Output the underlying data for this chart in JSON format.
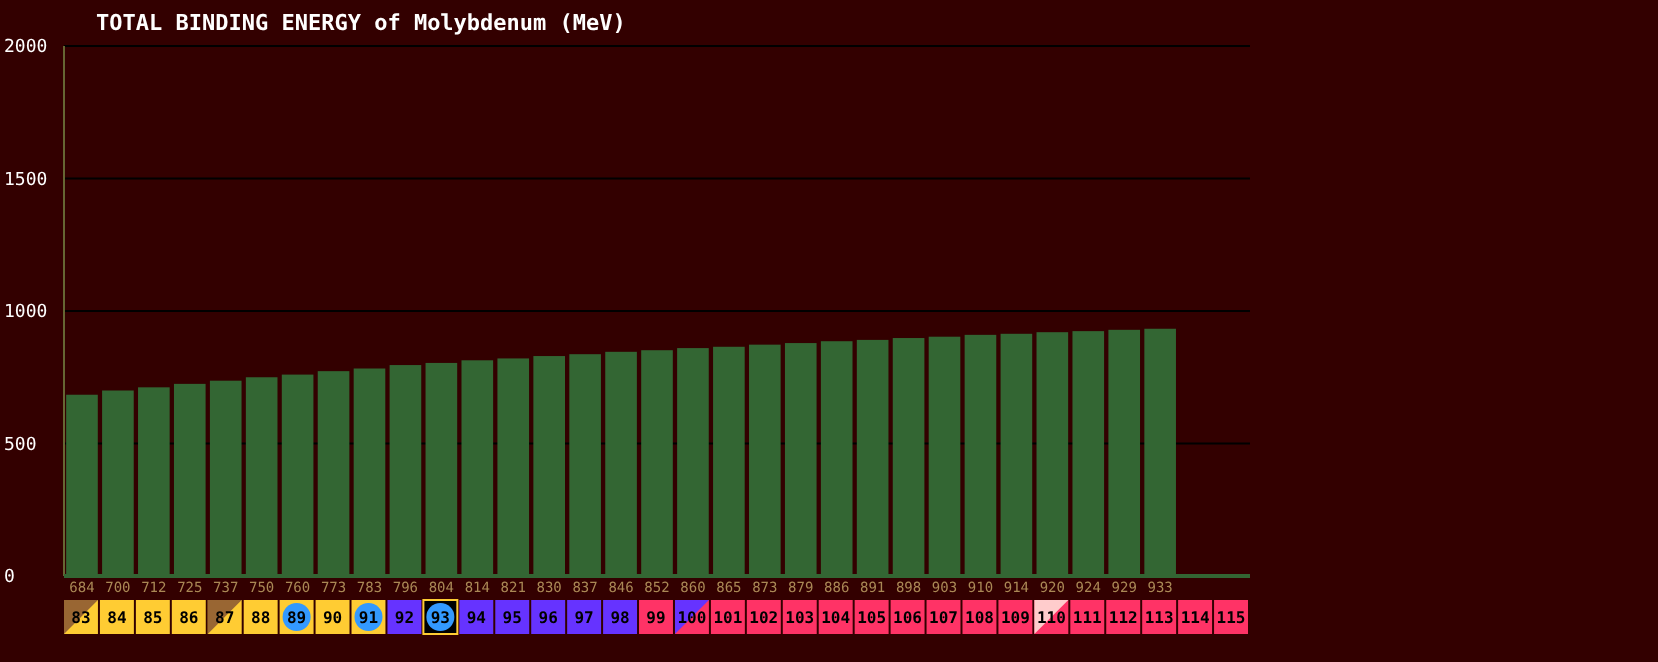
{
  "chart_data": {
    "type": "bar",
    "title": "TOTAL BINDING ENERGY of Molybdenum (MeV)",
    "categories": [
      "83",
      "84",
      "85",
      "86",
      "87",
      "88",
      "89",
      "90",
      "91",
      "92",
      "93",
      "94",
      "95",
      "96",
      "97",
      "98",
      "99",
      "100",
      "101",
      "102",
      "103",
      "104",
      "105",
      "106",
      "107",
      "108",
      "109",
      "110",
      "111",
      "112",
      "113",
      "114",
      "115"
    ],
    "values": [
      684,
      700,
      712,
      725,
      737,
      750,
      760,
      773,
      783,
      796,
      804,
      814,
      821,
      830,
      837,
      846,
      852,
      860,
      865,
      873,
      879,
      886,
      891,
      898,
      903,
      910,
      914,
      920,
      924,
      929,
      933,
      null,
      null
    ],
    "value_labels": [
      "684",
      "700",
      "712",
      "725",
      "737",
      "750",
      "760",
      "773",
      "783",
      "796",
      "804",
      "814",
      "821",
      "830",
      "837",
      "846",
      "852",
      "860",
      "865",
      "873",
      "879",
      "886",
      "891",
      "898",
      "903",
      "910",
      "914",
      "920",
      "924",
      "929",
      "933",
      null,
      null
    ],
    "color": "#336633",
    "ylim": [
      0,
      2000
    ],
    "yticks": [
      0,
      500,
      1000,
      1500,
      2000
    ],
    "grid": "y"
  }
}
